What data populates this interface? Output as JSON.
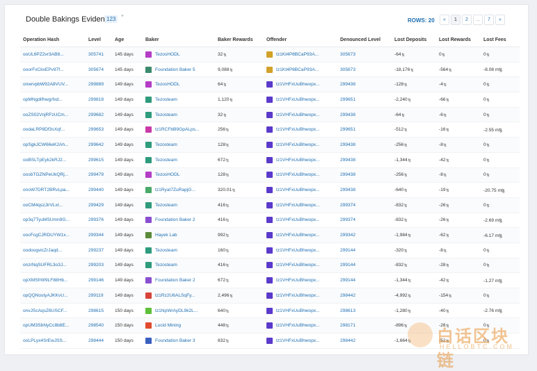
{
  "panel": {
    "title": "Double Bakings Evidence",
    "count": "123",
    "rows_label": "ROWS: 20",
    "pagination": [
      "«",
      "1",
      "2",
      "...",
      "7",
      "»"
    ],
    "active_page": "1"
  },
  "columns": [
    "Operation Hash",
    "Level",
    "Age",
    "Baker",
    "Baker Rewards",
    "Offender",
    "Denounced Level",
    "Lost Deposits",
    "Lost Rewards",
    "Lost Fees"
  ],
  "avatar_colors": {
    "TezosHODL": "#b43cc6",
    "Foundation Baker 5": "#3b8a6e",
    "Tezosteam": "#2e9b7d",
    "tz1RCFbB9GpALps...": "#c93aa8",
    "tz1Ryat7ZuRapjG...": "#4aaa6a",
    "Foundation Baker 2": "#8a4fd0",
    "Hayek Lab": "#5a8a3a",
    "tz1Rz2U6ALSqFy...": "#d6443a",
    "tz1NpWrAyDL9k2L...": "#5fbf3a",
    "Lucid Mining": "#e04a2f",
    "Foundation Baker 3": "#3a5fbf",
    "tz1Kt4P8BCaP93A...": "#d2a12a",
    "tz1VHFxUuBhwopx...": "#5a3acb"
  },
  "rows": [
    {
      "hash": "ooUL6PZ2vr3AB8...",
      "level": "305741",
      "age": "145 days",
      "baker": "TezosHODL",
      "rewards": "32",
      "offender": "tz1Kt4P8BCaP93A...",
      "denounced": "305673",
      "deposits": "-64",
      "lrewards": "0",
      "fees": "0"
    },
    {
      "hash": "ooorFxCkxEPv97f...",
      "level": "305674",
      "age": "145 days",
      "baker": "Foundation Baker 5",
      "rewards": "9,088",
      "offender": "tz1Kt4P8BCaP93A...",
      "denounced": "305673",
      "deposits": "-18,176",
      "lrewards": "-564",
      "fees": "-8.08 mꜩ"
    },
    {
      "hash": "onwrvpbW92A8VUV...",
      "level": "299889",
      "age": "149 days",
      "baker": "TezosHODL",
      "rewards": "64",
      "offender": "tz1VHFxUuBhwopx...",
      "denounced": "299438",
      "deposits": "-128",
      "lrewards": "-4",
      "fees": "0"
    },
    {
      "hash": "opMNgdifhwgrfxd...",
      "level": "299818",
      "age": "149 days",
      "baker": "Tezosteam",
      "rewards": "1,120",
      "offender": "tz1VHFxUuBhwopx...",
      "denounced": "299651",
      "deposits": "-2,240",
      "lrewards": "-66",
      "fees": "0"
    },
    {
      "hash": "ooZS02VnjRFzUCm...",
      "level": "299682",
      "age": "149 days",
      "baker": "Tezosteam",
      "rewards": "32",
      "offender": "tz1VHFxUuBhwopx...",
      "denounced": "299438",
      "deposits": "-64",
      "lrewards": "-6",
      "fees": "0"
    },
    {
      "hash": "oodaLRP8Df3sXqf...",
      "level": "299653",
      "age": "149 days",
      "baker": "tz1RCFbB9GpALps...",
      "rewards": "256",
      "offender": "tz1VHFxUuBhwopx...",
      "denounced": "299651",
      "deposits": "-512",
      "lrewards": "-16",
      "fees": "-2.55 mꜩ"
    },
    {
      "hash": "opSgkJCW66eK2Ah...",
      "level": "299642",
      "age": "149 days",
      "baker": "Tezosteam",
      "rewards": "128",
      "offender": "tz1VHFxUuBhwopx...",
      "denounced": "299438",
      "deposits": "-256",
      "lrewards": "-8",
      "fees": "0"
    },
    {
      "hash": "ooBSLTpEyk2kRJ2...",
      "level": "299615",
      "age": "149 days",
      "baker": "Tezosteam",
      "rewards": "672",
      "offender": "tz1VHFxUuBhwopx...",
      "denounced": "299438",
      "deposits": "-1,344",
      "lrewards": "-42",
      "fees": "0"
    },
    {
      "hash": "oosbTGZNPeUkQRj...",
      "level": "299479",
      "age": "149 days",
      "baker": "TezosHODL",
      "rewards": "128",
      "offender": "tz1VHFxUuBhwopx...",
      "denounced": "299438",
      "deposits": "-256",
      "lrewards": "-8",
      "fees": "0"
    },
    {
      "hash": "onoW7DRT2BRvLpa...",
      "level": "299440",
      "age": "149 days",
      "baker": "tz1Ryat7ZuRapjG...",
      "rewards": "320.01",
      "offender": "tz1VHFxUuBhwopx...",
      "denounced": "299438",
      "deposits": "-640",
      "lrewards": "-19",
      "fees": "-20.75 mꜩ"
    },
    {
      "hash": "ooCM4qszJirVLxt...",
      "level": "299429",
      "age": "149 days",
      "baker": "Tezosteam",
      "rewards": "416",
      "offender": "tz1VHFxUuBhwopx...",
      "denounced": "299374",
      "deposits": "-832",
      "lrewards": "-26",
      "fees": "0"
    },
    {
      "hash": "op3q7TyuMSUmn9G...",
      "level": "299376",
      "age": "149 days",
      "baker": "Foundation Baker 2",
      "rewards": "416",
      "offender": "tz1VHFxUuBhwopx...",
      "denounced": "299374",
      "deposits": "-832",
      "lrewards": "-26",
      "fees": "-2.69 mꜩ"
    },
    {
      "hash": "oocFcgCJRDUYW1x...",
      "level": "299344",
      "age": "149 days",
      "baker": "Hayek Lab",
      "rewards": "992",
      "offender": "tz1VHFxUuBhwopx...",
      "denounced": "299342",
      "deposits": "-1,984",
      "lrewards": "-62",
      "fees": "-6.17 mꜩ"
    },
    {
      "hash": "oodoogvicZrJaqd...",
      "level": "299237",
      "age": "149 days",
      "baker": "Tezosteam",
      "rewards": "160",
      "offender": "tz1VHFxUuBhwopx...",
      "denounced": "299144",
      "deposits": "-320",
      "lrewards": "-8",
      "fees": "0"
    },
    {
      "hash": "onzrNqSUFRL3o3J...",
      "level": "299203",
      "age": "149 days",
      "baker": "Tezosteam",
      "rewards": "416",
      "offender": "tz1VHFxUuBhwopx...",
      "denounced": "299144",
      "deposits": "-832",
      "lrewards": "-28",
      "fees": "0"
    },
    {
      "hash": "opXMSfrW9LF88Hb...",
      "level": "299146",
      "age": "149 days",
      "baker": "Foundation Baker 2",
      "rewards": "672",
      "offender": "tz1VHFxUuBhwopx...",
      "denounced": "299144",
      "deposits": "-1,344",
      "lrewards": "-42",
      "fees": "-1.27 mꜩ"
    },
    {
      "hash": "opQQNostyAJKKvU...",
      "level": "299119",
      "age": "149 days",
      "baker": "tz1Rz2U6ALSqFy...",
      "rewards": "2,496",
      "offender": "tz1VHFxUuBhwopx...",
      "denounced": "298442",
      "deposits": "-4,992",
      "lrewards": "-154",
      "fees": "0"
    },
    {
      "hash": "onvJScAqsZ6USCF...",
      "level": "298615",
      "age": "150 days",
      "baker": "tz1NpWrAyDL9k2L...",
      "rewards": "640",
      "offender": "tz1VHFxUuBhwopx...",
      "denounced": "298613",
      "deposits": "-1,280",
      "lrewards": "-40",
      "fees": "-2.76 mꜩ"
    },
    {
      "hash": "opUM3SbNyCc8b8E...",
      "level": "298540",
      "age": "150 days",
      "baker": "Lucid Mining",
      "rewards": "448",
      "offender": "tz1VHFxUuBhwopx...",
      "denounced": "298171",
      "deposits": "-896",
      "lrewards": "-28",
      "fees": "0"
    },
    {
      "hash": "ooLPLyx4SrEwJSS...",
      "level": "298444",
      "age": "150 days",
      "baker": "Foundation Baker 3",
      "rewards": "832",
      "offender": "tz1VHFxUuBhwopx...",
      "denounced": "298442",
      "deposits": "-1,664",
      "lrewards": "-52",
      "fees": "0"
    }
  ],
  "currency_symbol": "ꜩ",
  "watermark": {
    "main": "白话区块链",
    "sub": "HELLOBTC.COM"
  }
}
